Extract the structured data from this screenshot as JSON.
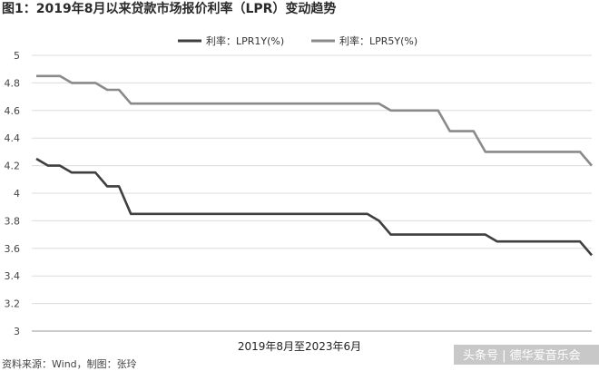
{
  "chart_data": {
    "type": "line",
    "title": "图1：2019年8月以来贷款市场报价利率（LPR）变动趋势",
    "xlabel": "2019年8月至2023年6月",
    "ylabel": "",
    "ylim": [
      3,
      5
    ],
    "yticks": [
      3,
      3.2,
      3.4,
      3.6,
      3.8,
      4,
      4.2,
      4.4,
      4.6,
      4.8,
      5
    ],
    "ytick_labels": [
      "3",
      "3.2",
      "3.4",
      "3.6",
      "3.8",
      "4",
      "4.2",
      "4.4",
      "4.6",
      "4.8",
      "5"
    ],
    "grid": true,
    "legend": "top-center",
    "series": [
      {
        "name": "利率：LPR1Y(%)",
        "color": "#3f3f3f",
        "values": [
          4.25,
          4.2,
          4.2,
          4.15,
          4.15,
          4.15,
          4.05,
          4.05,
          3.85,
          3.85,
          3.85,
          3.85,
          3.85,
          3.85,
          3.85,
          3.85,
          3.85,
          3.85,
          3.85,
          3.85,
          3.85,
          3.85,
          3.85,
          3.85,
          3.85,
          3.85,
          3.85,
          3.85,
          3.85,
          3.8,
          3.7,
          3.7,
          3.7,
          3.7,
          3.7,
          3.7,
          3.7,
          3.7,
          3.7,
          3.65,
          3.65,
          3.65,
          3.65,
          3.65,
          3.65,
          3.65,
          3.65,
          3.55
        ]
      },
      {
        "name": "利率：LPR5Y(%)",
        "color": "#8a8a8a",
        "values": [
          4.85,
          4.85,
          4.85,
          4.8,
          4.8,
          4.8,
          4.75,
          4.75,
          4.65,
          4.65,
          4.65,
          4.65,
          4.65,
          4.65,
          4.65,
          4.65,
          4.65,
          4.65,
          4.65,
          4.65,
          4.65,
          4.65,
          4.65,
          4.65,
          4.65,
          4.65,
          4.65,
          4.65,
          4.65,
          4.65,
          4.6,
          4.6,
          4.6,
          4.6,
          4.6,
          4.45,
          4.45,
          4.45,
          4.3,
          4.3,
          4.3,
          4.3,
          4.3,
          4.3,
          4.3,
          4.3,
          4.3,
          4.2
        ]
      }
    ]
  },
  "footnote": "资料来源：Wind，制图：张玲",
  "watermark": "头条号 | 德华爱音乐会"
}
